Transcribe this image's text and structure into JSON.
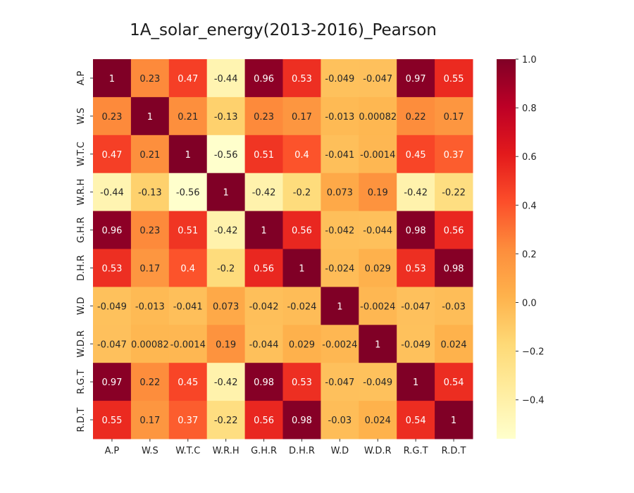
{
  "chart_data": {
    "type": "heatmap",
    "title": "1A_solar_energy(2013-2016)_Pearson",
    "xlabel": "",
    "ylabel": "",
    "x_categories": [
      "A.P",
      "W.S",
      "W.T.C",
      "W.R.H",
      "G.H.R",
      "D.H.R",
      "W.D",
      "W.D.R",
      "R.G.T",
      "R.D.T"
    ],
    "y_categories": [
      "A.P",
      "W.S",
      "W.T.C",
      "W.R.H",
      "G.H.R",
      "D.H.R",
      "W.D",
      "W.D.R",
      "R.G.T",
      "R.D.T"
    ],
    "values": [
      [
        1,
        0.23,
        0.47,
        -0.44,
        0.96,
        0.53,
        -0.049,
        -0.047,
        0.97,
        0.55
      ],
      [
        0.23,
        1,
        0.21,
        -0.13,
        0.23,
        0.17,
        -0.013,
        0.00082,
        0.22,
        0.17
      ],
      [
        0.47,
        0.21,
        1,
        -0.56,
        0.51,
        0.4,
        -0.041,
        -0.0014,
        0.45,
        0.37
      ],
      [
        -0.44,
        -0.13,
        -0.56,
        1,
        -0.42,
        -0.2,
        0.073,
        0.19,
        -0.42,
        -0.22
      ],
      [
        0.96,
        0.23,
        0.51,
        -0.42,
        1,
        0.56,
        -0.042,
        -0.044,
        0.98,
        0.56
      ],
      [
        0.53,
        0.17,
        0.4,
        -0.2,
        0.56,
        1,
        -0.024,
        0.029,
        0.53,
        0.98
      ],
      [
        -0.049,
        -0.013,
        -0.041,
        0.073,
        -0.042,
        -0.024,
        1,
        -0.0024,
        -0.047,
        -0.03
      ],
      [
        -0.047,
        0.00082,
        -0.0014,
        0.19,
        -0.044,
        0.029,
        -0.0024,
        1,
        -0.049,
        0.024
      ],
      [
        0.97,
        0.22,
        0.45,
        -0.42,
        0.98,
        0.53,
        -0.047,
        -0.049,
        1,
        0.54
      ],
      [
        0.55,
        0.17,
        0.37,
        -0.22,
        0.56,
        0.98,
        -0.03,
        0.024,
        0.54,
        1
      ]
    ],
    "value_labels": [
      [
        "1",
        "0.23",
        "0.47",
        "-0.44",
        "0.96",
        "0.53",
        "-0.049",
        "-0.047",
        "0.97",
        "0.55"
      ],
      [
        "0.23",
        "1",
        "0.21",
        "-0.13",
        "0.23",
        "0.17",
        "-0.013",
        "0.00082",
        "0.22",
        "0.17"
      ],
      [
        "0.47",
        "0.21",
        "1",
        "-0.56",
        "0.51",
        "0.4",
        "-0.041",
        "-0.0014",
        "0.45",
        "0.37"
      ],
      [
        "-0.44",
        "-0.13",
        "-0.56",
        "1",
        "-0.42",
        "-0.2",
        "0.073",
        "0.19",
        "-0.42",
        "-0.22"
      ],
      [
        "0.96",
        "0.23",
        "0.51",
        "-0.42",
        "1",
        "0.56",
        "-0.042",
        "-0.044",
        "0.98",
        "0.56"
      ],
      [
        "0.53",
        "0.17",
        "0.4",
        "-0.2",
        "0.56",
        "1",
        "-0.024",
        "0.029",
        "0.53",
        "0.98"
      ],
      [
        "-0.049",
        "-0.013",
        "-0.041",
        "0.073",
        "-0.042",
        "-0.024",
        "1",
        "-0.0024",
        "-0.047",
        "-0.03"
      ],
      [
        "-0.047",
        "0.00082",
        "-0.0014",
        "0.19",
        "-0.044",
        "0.029",
        "-0.0024",
        "1",
        "-0.049",
        "0.024"
      ],
      [
        "0.97",
        "0.22",
        "0.45",
        "-0.42",
        "0.98",
        "0.53",
        "-0.047",
        "-0.049",
        "1",
        "0.54"
      ],
      [
        "0.55",
        "0.17",
        "0.37",
        "-0.22",
        "0.56",
        "0.98",
        "-0.03",
        "0.024",
        "0.54",
        "1"
      ]
    ],
    "colormap": "YlOrRd",
    "vmin": -0.56,
    "vmax": 1,
    "colorbar_ticks": [
      1.0,
      0.8,
      0.6,
      0.4,
      0.2,
      0.0,
      -0.2,
      -0.4
    ],
    "colorbar_tick_labels": [
      "1.0",
      "0.8",
      "0.6",
      "0.4",
      "0.2",
      "0.0",
      "−0.2",
      "−0.4"
    ],
    "colorbar_placement": "right",
    "grid": false
  }
}
